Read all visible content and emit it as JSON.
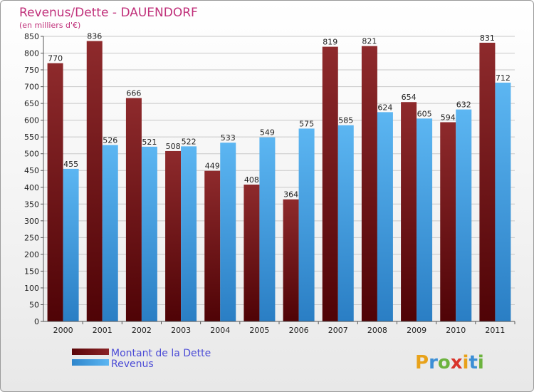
{
  "chart_data": {
    "type": "bar",
    "title": "Revenus/Dette - DAUENDORF",
    "subtitle": "(en milliers d'€)",
    "categories": [
      "2000",
      "2001",
      "2002",
      "2003",
      "2004",
      "2005",
      "2006",
      "2007",
      "2008",
      "2009",
      "2010",
      "2011"
    ],
    "series": [
      {
        "name": "Montant de la Dette",
        "color": "#7a1518",
        "values": [
          770,
          836,
          666,
          508,
          449,
          408,
          364,
          819,
          821,
          654,
          594,
          831
        ]
      },
      {
        "name": "Revenus",
        "color": "#4aa6e8",
        "values": [
          455,
          526,
          521,
          522,
          533,
          549,
          575,
          585,
          624,
          605,
          632,
          712
        ]
      }
    ],
    "ylim": [
      0,
      850
    ],
    "ytick_step": 50,
    "grid": true,
    "legend": "bottom-left"
  },
  "logo": {
    "text": "Proxiti"
  }
}
